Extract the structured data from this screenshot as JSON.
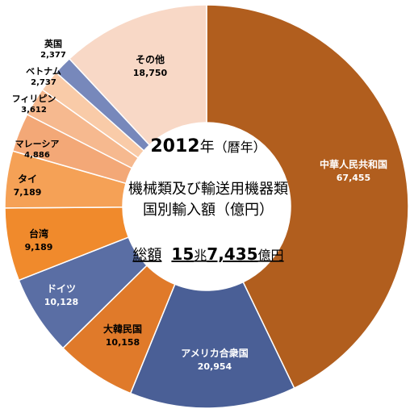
{
  "chart_data": {
    "type": "donut",
    "center": {
      "year": "2012",
      "year_suffix": "年",
      "calendar": "（暦年）",
      "title_line1": "機械類及び輸送用機器類",
      "title_line2": "国別輸入額（億円）",
      "total_label": "総額",
      "total_value_prefix": "15",
      "total_value_cho": "兆",
      "total_value_rest": "7,435",
      "total_unit": "億円"
    },
    "slices": [
      {
        "name": "中華人民共和国",
        "value_text": "67,455",
        "value": 67455,
        "color": "#b15e1e"
      },
      {
        "name": "アメリカ合衆国",
        "value_text": "20,954",
        "value": 20954,
        "color": "#4a5f96"
      },
      {
        "name": "大韓民国",
        "value_text": "10,158",
        "value": 10158,
        "color": "#e07a2a"
      },
      {
        "name": "ドイツ",
        "value_text": "10,128",
        "value": 10128,
        "color": "#5a6ea4"
      },
      {
        "name": "台湾",
        "value_text": "9,189",
        "value": 9189,
        "color": "#f08a2c"
      },
      {
        "name": "タイ",
        "value_text": "7,189",
        "value": 7189,
        "color": "#f5a156"
      },
      {
        "name": "マレーシア",
        "value_text": "4,886",
        "value": 4886,
        "color": "#f3a877"
      },
      {
        "name": "フィリピン",
        "value_text": "3,612",
        "value": 3612,
        "color": "#f6b98f"
      },
      {
        "name": "ベトナム",
        "value_text": "2,737",
        "value": 2737,
        "color": "#f9cba8"
      },
      {
        "name": "英国",
        "value_text": "2,377",
        "value": 2377,
        "color": "#7788bb"
      },
      {
        "name": "その他",
        "value_text": "18,750",
        "value": 18750,
        "color": "#f8d8c6"
      }
    ]
  }
}
